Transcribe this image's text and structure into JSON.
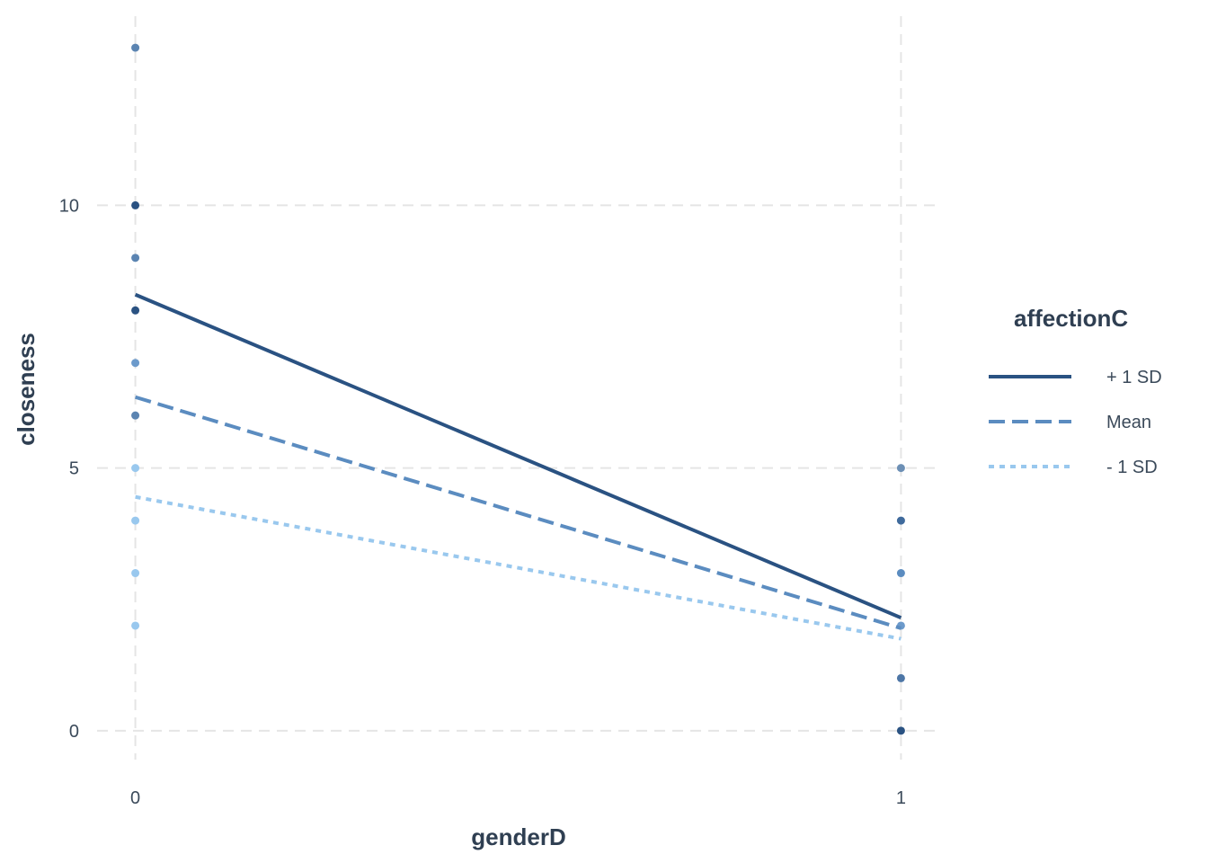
{
  "chart_data": {
    "type": "line",
    "xlabel": "genderD",
    "ylabel": "closeness",
    "xlim": [
      -0.05,
      1.05
    ],
    "ylim": [
      -0.55,
      13.6
    ],
    "x_ticks": [
      "0",
      "1"
    ],
    "y_ticks": [
      "0",
      "5",
      "10"
    ],
    "grid": true,
    "legend": {
      "title": "affectionC",
      "position": "right",
      "entries": [
        "+ 1 SD",
        "Mean",
        "- 1 SD"
      ]
    },
    "series": [
      {
        "name": "+ 1 SD",
        "x": [
          0,
          1
        ],
        "values": [
          8.3,
          2.15
        ],
        "color": "#2a5282",
        "dash": "solid"
      },
      {
        "name": "Mean",
        "x": [
          0,
          1
        ],
        "values": [
          6.35,
          1.95
        ],
        "color": "#5b8cc0",
        "dash": "dashed"
      },
      {
        "name": "- 1 SD",
        "x": [
          0,
          1
        ],
        "values": [
          4.45,
          1.75
        ],
        "color": "#99c8ee",
        "dash": "dotted"
      }
    ],
    "points": [
      {
        "x": 0,
        "y": 13,
        "color": "#5b84b1"
      },
      {
        "x": 0,
        "y": 10,
        "color": "#2a5282"
      },
      {
        "x": 0,
        "y": 9,
        "color": "#5b84b1"
      },
      {
        "x": 0,
        "y": 8,
        "color": "#2a5282"
      },
      {
        "x": 0,
        "y": 7,
        "color": "#6c9acb"
      },
      {
        "x": 0,
        "y": 6,
        "color": "#5b84b1"
      },
      {
        "x": 0,
        "y": 5,
        "color": "#99c8ee"
      },
      {
        "x": 0,
        "y": 4,
        "color": "#99c8ee"
      },
      {
        "x": 0,
        "y": 3,
        "color": "#99c8ee"
      },
      {
        "x": 0,
        "y": 2,
        "color": "#99c8ee"
      },
      {
        "x": 1,
        "y": 5,
        "color": "#6c8fb5"
      },
      {
        "x": 1,
        "y": 4,
        "color": "#3f6a9c"
      },
      {
        "x": 1,
        "y": 3,
        "color": "#5b8cc0"
      },
      {
        "x": 1,
        "y": 2,
        "color": "#6c9acb"
      },
      {
        "x": 1,
        "y": 1,
        "color": "#4d76a6"
      },
      {
        "x": 1,
        "y": 0,
        "color": "#2a5282"
      }
    ]
  }
}
